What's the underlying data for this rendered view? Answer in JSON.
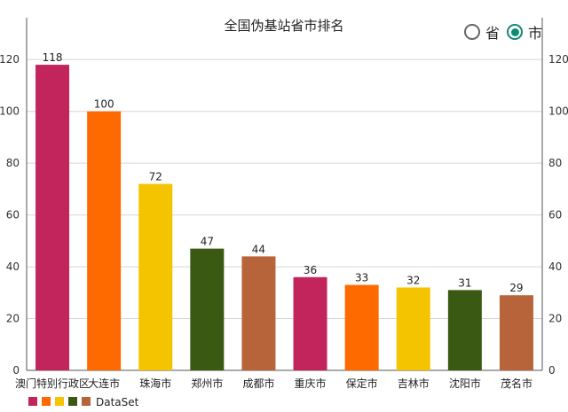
{
  "toggle": {
    "options": [
      {
        "label": "省",
        "checked": false
      },
      {
        "label": "市",
        "checked": true
      }
    ],
    "accent": "#118a72"
  },
  "chart_data": {
    "type": "bar",
    "title": "全国伪基站省市排名",
    "categories": [
      "澳门特别行政区",
      "大连市",
      "珠海市",
      "郑州市",
      "成都市",
      "重庆市",
      "保定市",
      "吉林市",
      "沈阳市",
      "茂名市"
    ],
    "series": [
      {
        "name": "DataSet",
        "values": [
          118,
          100,
          72,
          47,
          44,
          36,
          33,
          32,
          31,
          29
        ]
      }
    ],
    "colors": [
      "#c2255c",
      "#ff6a00",
      "#f5c400",
      "#3a5a14",
      "#b8643a"
    ],
    "ylim": [
      0,
      130
    ],
    "yticks": [
      0,
      20,
      40,
      60,
      80,
      100,
      120
    ],
    "grid": true,
    "right_axis": true,
    "legend_position": "bottom-left"
  }
}
